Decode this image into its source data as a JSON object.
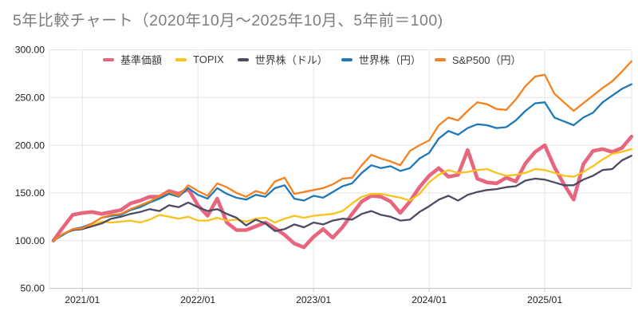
{
  "page": {
    "title": "5年比較チャート（2020年10月～2025年10月、5年前＝100)"
  },
  "chart_data": {
    "type": "line",
    "title": "5年比較チャート（2020年10月～2025年10月、5年前＝100)",
    "legend_position": "top",
    "grid": true,
    "ylim": [
      50,
      300
    ],
    "y_ticks": [
      {
        "label": "300.00",
        "value": 300
      },
      {
        "label": "250.00",
        "value": 250
      },
      {
        "label": "200.00",
        "value": 200
      },
      {
        "label": "150.00",
        "value": 150
      },
      {
        "label": "100.00",
        "value": 100
      },
      {
        "label": "50.00",
        "value": 50
      }
    ],
    "x_ticks": [
      {
        "label": "2021/01",
        "index": 3
      },
      {
        "label": "2022/01",
        "index": 15
      },
      {
        "label": "2023/01",
        "index": 27
      },
      {
        "label": "2024/01",
        "index": 39
      },
      {
        "label": "2025/01",
        "index": 51
      }
    ],
    "categories": [
      "2020/10",
      "2020/11",
      "2020/12",
      "2021/01",
      "2021/02",
      "2021/03",
      "2021/04",
      "2021/05",
      "2021/06",
      "2021/07",
      "2021/08",
      "2021/09",
      "2021/10",
      "2021/11",
      "2021/12",
      "2022/01",
      "2022/02",
      "2022/03",
      "2022/04",
      "2022/05",
      "2022/06",
      "2022/07",
      "2022/08",
      "2022/09",
      "2022/10",
      "2022/11",
      "2022/12",
      "2023/01",
      "2023/02",
      "2023/03",
      "2023/04",
      "2023/05",
      "2023/06",
      "2023/07",
      "2023/08",
      "2023/09",
      "2023/10",
      "2023/11",
      "2023/12",
      "2024/01",
      "2024/02",
      "2024/03",
      "2024/04",
      "2024/05",
      "2024/06",
      "2024/07",
      "2024/08",
      "2024/09",
      "2024/10",
      "2024/11",
      "2024/12",
      "2025/01",
      "2025/02",
      "2025/03",
      "2025/04",
      "2025/05",
      "2025/06",
      "2025/07",
      "2025/08",
      "2025/09",
      "2025/10"
    ],
    "series": [
      {
        "name": "基準価額",
        "key": "fund-price",
        "color": "#e8657e",
        "line_width": 4.6,
        "values": [
          100,
          114,
          127,
          129,
          130,
          128,
          130,
          132,
          139,
          142,
          146,
          146,
          152,
          149,
          154,
          137,
          126,
          144,
          119,
          111,
          111,
          115,
          119,
          113,
          106,
          97,
          93,
          104,
          112,
          103,
          114,
          128,
          141,
          147,
          146,
          141,
          129,
          141,
          156,
          168,
          176,
          167,
          169,
          195,
          165,
          161,
          160,
          166,
          162,
          181,
          193,
          200,
          177,
          159,
          143,
          180,
          194,
          196,
          193,
          197,
          209
        ]
      },
      {
        "name": "TOPIX",
        "key": "topix",
        "color": "#fcc21c",
        "line_width": 2.3,
        "values": [
          100,
          107,
          111,
          113,
          116,
          120,
          119,
          120,
          121,
          119,
          122,
          127,
          125,
          123,
          125,
          121,
          121,
          124,
          121,
          122,
          120,
          123,
          124,
          119,
          123,
          126,
          124,
          126,
          127,
          128,
          131,
          139,
          146,
          149,
          149,
          147,
          145,
          142,
          149,
          161,
          169,
          174,
          171,
          172,
          174,
          175,
          171,
          168,
          169,
          171,
          175,
          174,
          171,
          168,
          167,
          172,
          178,
          185,
          191,
          193,
          196
        ]
      },
      {
        "name": "世界株（ドル）",
        "key": "world-stock-usd",
        "color": "#4b4b63",
        "line_width": 2.3,
        "values": [
          100,
          107,
          111,
          112,
          115,
          118,
          123,
          125,
          128,
          130,
          133,
          131,
          137,
          135,
          140,
          135,
          131,
          133,
          128,
          124,
          116,
          122,
          118,
          110,
          112,
          117,
          114,
          119,
          117,
          121,
          123,
          122,
          128,
          131,
          127,
          125,
          121,
          122,
          130,
          136,
          143,
          147,
          142,
          148,
          151,
          153,
          154,
          156,
          157,
          163,
          165,
          164,
          161,
          158,
          158,
          164,
          168,
          174,
          175,
          184,
          189
        ]
      },
      {
        "name": "世界株（円）",
        "key": "world-stock-jpy",
        "color": "#1e79b9",
        "line_width": 2.3,
        "values": [
          100,
          106,
          112,
          114,
          118,
          124,
          126,
          127,
          132,
          135,
          140,
          144,
          149,
          146,
          155,
          148,
          144,
          155,
          149,
          145,
          143,
          148,
          146,
          155,
          158,
          144,
          142,
          147,
          145,
          151,
          157,
          160,
          171,
          179,
          176,
          178,
          173,
          176,
          186,
          192,
          207,
          215,
          211,
          218,
          222,
          221,
          218,
          219,
          226,
          236,
          244,
          245,
          229,
          225,
          221,
          229,
          234,
          245,
          252,
          259,
          264
        ]
      },
      {
        "name": "S&P500（円）",
        "key": "sp500-jpy",
        "color": "#f5821f",
        "line_width": 2.3,
        "values": [
          100,
          107,
          112,
          113,
          118,
          124,
          127,
          128,
          133,
          137,
          141,
          147,
          151,
          147,
          158,
          152,
          147,
          160,
          156,
          150,
          146,
          152,
          149,
          162,
          166,
          149,
          151,
          153,
          155,
          159,
          165,
          166,
          179,
          190,
          186,
          183,
          179,
          194,
          200,
          205,
          221,
          229,
          226,
          236,
          245,
          243,
          238,
          237,
          248,
          262,
          272,
          274,
          254,
          245,
          236,
          244,
          252,
          260,
          267,
          277,
          288
        ]
      }
    ],
    "colors": {
      "background": "#ffffff",
      "grid": "#e4e4e4",
      "axis": "#c6c6c6",
      "tick_text": "#1f1f1f",
      "title_text": "#7d7d7d",
      "legend_text": "#3c3c3c"
    }
  }
}
